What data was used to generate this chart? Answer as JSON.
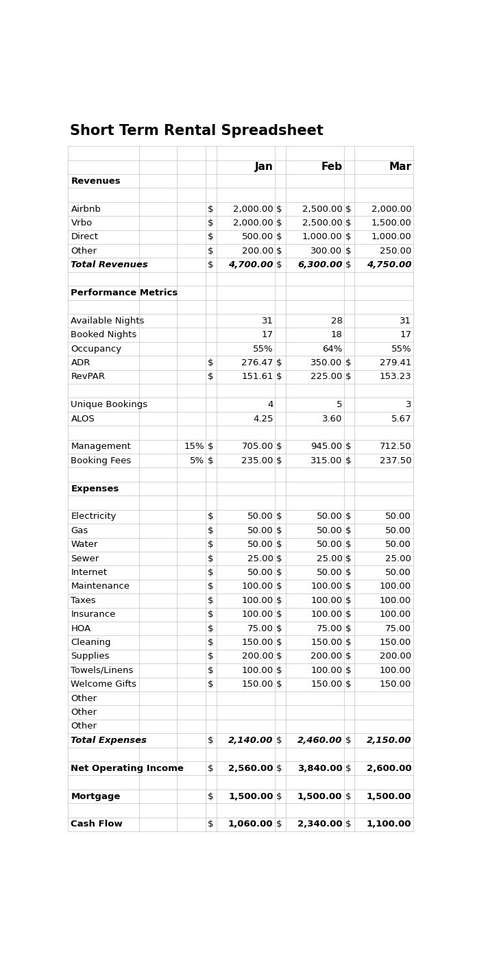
{
  "title": "Short Term Rental Spreadsheet",
  "rows": [
    {
      "label": "Revenues",
      "bold": true,
      "italic": false,
      "pct": "",
      "s0": "",
      "v0": "",
      "s1": "",
      "v1": "",
      "s2": "",
      "v2": ""
    },
    {
      "label": "",
      "bold": false,
      "italic": false,
      "pct": "",
      "s0": "",
      "v0": "",
      "s1": "",
      "v1": "",
      "s2": "",
      "v2": ""
    },
    {
      "label": "Airbnb",
      "bold": false,
      "italic": false,
      "pct": "",
      "s0": "$",
      "v0": "2,000.00",
      "s1": "$",
      "v1": "2,500.00",
      "s2": "$",
      "v2": "2,000.00"
    },
    {
      "label": "Vrbo",
      "bold": false,
      "italic": false,
      "pct": "",
      "s0": "$",
      "v0": "2,000.00",
      "s1": "$",
      "v1": "2,500.00",
      "s2": "$",
      "v2": "1,500.00"
    },
    {
      "label": "Direct",
      "bold": false,
      "italic": false,
      "pct": "",
      "s0": "$",
      "v0": "500.00",
      "s1": "$",
      "v1": "1,000.00",
      "s2": "$",
      "v2": "1,000.00"
    },
    {
      "label": "Other",
      "bold": false,
      "italic": false,
      "pct": "",
      "s0": "$",
      "v0": "200.00",
      "s1": "$",
      "v1": "300.00",
      "s2": "$",
      "v2": "250.00"
    },
    {
      "label": "Total Revenues",
      "bold": true,
      "italic": true,
      "pct": "",
      "s0": "$",
      "v0": "4,700.00",
      "s1": "$",
      "v1": "6,300.00",
      "s2": "$",
      "v2": "4,750.00"
    },
    {
      "label": "",
      "bold": false,
      "italic": false,
      "pct": "",
      "s0": "",
      "v0": "",
      "s1": "",
      "v1": "",
      "s2": "",
      "v2": ""
    },
    {
      "label": "Performance Metrics",
      "bold": true,
      "italic": false,
      "pct": "",
      "s0": "",
      "v0": "",
      "s1": "",
      "v1": "",
      "s2": "",
      "v2": ""
    },
    {
      "label": "",
      "bold": false,
      "italic": false,
      "pct": "",
      "s0": "",
      "v0": "",
      "s1": "",
      "v1": "",
      "s2": "",
      "v2": ""
    },
    {
      "label": "Available Nights",
      "bold": false,
      "italic": false,
      "pct": "",
      "s0": "",
      "v0": "31",
      "s1": "",
      "v1": "28",
      "s2": "",
      "v2": "31"
    },
    {
      "label": "Booked Nights",
      "bold": false,
      "italic": false,
      "pct": "",
      "s0": "",
      "v0": "17",
      "s1": "",
      "v1": "18",
      "s2": "",
      "v2": "17"
    },
    {
      "label": "Occupancy",
      "bold": false,
      "italic": false,
      "pct": "",
      "s0": "",
      "v0": "55%",
      "s1": "",
      "v1": "64%",
      "s2": "",
      "v2": "55%"
    },
    {
      "label": "ADR",
      "bold": false,
      "italic": false,
      "pct": "",
      "s0": "$",
      "v0": "276.47",
      "s1": "$",
      "v1": "350.00",
      "s2": "$",
      "v2": "279.41"
    },
    {
      "label": "RevPAR",
      "bold": false,
      "italic": false,
      "pct": "",
      "s0": "$",
      "v0": "151.61",
      "s1": "$",
      "v1": "225.00",
      "s2": "$",
      "v2": "153.23"
    },
    {
      "label": "",
      "bold": false,
      "italic": false,
      "pct": "",
      "s0": "",
      "v0": "",
      "s1": "",
      "v1": "",
      "s2": "",
      "v2": ""
    },
    {
      "label": "Unique Bookings",
      "bold": false,
      "italic": false,
      "pct": "",
      "s0": "",
      "v0": "4",
      "s1": "",
      "v1": "5",
      "s2": "",
      "v2": "3"
    },
    {
      "label": "ALOS",
      "bold": false,
      "italic": false,
      "pct": "",
      "s0": "",
      "v0": "4.25",
      "s1": "",
      "v1": "3.60",
      "s2": "",
      "v2": "5.67"
    },
    {
      "label": "",
      "bold": false,
      "italic": false,
      "pct": "",
      "s0": "",
      "v0": "",
      "s1": "",
      "v1": "",
      "s2": "",
      "v2": ""
    },
    {
      "label": "Management",
      "bold": false,
      "italic": false,
      "pct": "15%",
      "s0": "$",
      "v0": "705.00",
      "s1": "$",
      "v1": "945.00",
      "s2": "$",
      "v2": "712.50"
    },
    {
      "label": "Booking Fees",
      "bold": false,
      "italic": false,
      "pct": "5%",
      "s0": "$",
      "v0": "235.00",
      "s1": "$",
      "v1": "315.00",
      "s2": "$",
      "v2": "237.50"
    },
    {
      "label": "",
      "bold": false,
      "italic": false,
      "pct": "",
      "s0": "",
      "v0": "",
      "s1": "",
      "v1": "",
      "s2": "",
      "v2": ""
    },
    {
      "label": "Expenses",
      "bold": true,
      "italic": false,
      "pct": "",
      "s0": "",
      "v0": "",
      "s1": "",
      "v1": "",
      "s2": "",
      "v2": ""
    },
    {
      "label": "",
      "bold": false,
      "italic": false,
      "pct": "",
      "s0": "",
      "v0": "",
      "s1": "",
      "v1": "",
      "s2": "",
      "v2": ""
    },
    {
      "label": "Electricity",
      "bold": false,
      "italic": false,
      "pct": "",
      "s0": "$",
      "v0": "50.00",
      "s1": "$",
      "v1": "50.00",
      "s2": "$",
      "v2": "50.00"
    },
    {
      "label": "Gas",
      "bold": false,
      "italic": false,
      "pct": "",
      "s0": "$",
      "v0": "50.00",
      "s1": "$",
      "v1": "50.00",
      "s2": "$",
      "v2": "50.00"
    },
    {
      "label": "Water",
      "bold": false,
      "italic": false,
      "pct": "",
      "s0": "$",
      "v0": "50.00",
      "s1": "$",
      "v1": "50.00",
      "s2": "$",
      "v2": "50.00"
    },
    {
      "label": "Sewer",
      "bold": false,
      "italic": false,
      "pct": "",
      "s0": "$",
      "v0": "25.00",
      "s1": "$",
      "v1": "25.00",
      "s2": "$",
      "v2": "25.00"
    },
    {
      "label": "Internet",
      "bold": false,
      "italic": false,
      "pct": "",
      "s0": "$",
      "v0": "50.00",
      "s1": "$",
      "v1": "50.00",
      "s2": "$",
      "v2": "50.00"
    },
    {
      "label": "Maintenance",
      "bold": false,
      "italic": false,
      "pct": "",
      "s0": "$",
      "v0": "100.00",
      "s1": "$",
      "v1": "100.00",
      "s2": "$",
      "v2": "100.00"
    },
    {
      "label": "Taxes",
      "bold": false,
      "italic": false,
      "pct": "",
      "s0": "$",
      "v0": "100.00",
      "s1": "$",
      "v1": "100.00",
      "s2": "$",
      "v2": "100.00"
    },
    {
      "label": "Insurance",
      "bold": false,
      "italic": false,
      "pct": "",
      "s0": "$",
      "v0": "100.00",
      "s1": "$",
      "v1": "100.00",
      "s2": "$",
      "v2": "100.00"
    },
    {
      "label": "HOA",
      "bold": false,
      "italic": false,
      "pct": "",
      "s0": "$",
      "v0": "75.00",
      "s1": "$",
      "v1": "75.00",
      "s2": "$",
      "v2": "75.00"
    },
    {
      "label": "Cleaning",
      "bold": false,
      "italic": false,
      "pct": "",
      "s0": "$",
      "v0": "150.00",
      "s1": "$",
      "v1": "150.00",
      "s2": "$",
      "v2": "150.00"
    },
    {
      "label": "Supplies",
      "bold": false,
      "italic": false,
      "pct": "",
      "s0": "$",
      "v0": "200.00",
      "s1": "$",
      "v1": "200.00",
      "s2": "$",
      "v2": "200.00"
    },
    {
      "label": "Towels/Linens",
      "bold": false,
      "italic": false,
      "pct": "",
      "s0": "$",
      "v0": "100.00",
      "s1": "$",
      "v1": "100.00",
      "s2": "$",
      "v2": "100.00"
    },
    {
      "label": "Welcome Gifts",
      "bold": false,
      "italic": false,
      "pct": "",
      "s0": "$",
      "v0": "150.00",
      "s1": "$",
      "v1": "150.00",
      "s2": "$",
      "v2": "150.00"
    },
    {
      "label": "Other",
      "bold": false,
      "italic": false,
      "pct": "",
      "s0": "",
      "v0": "",
      "s1": "",
      "v1": "",
      "s2": "",
      "v2": ""
    },
    {
      "label": "Other",
      "bold": false,
      "italic": false,
      "pct": "",
      "s0": "",
      "v0": "",
      "s1": "",
      "v1": "",
      "s2": "",
      "v2": ""
    },
    {
      "label": "Other",
      "bold": false,
      "italic": false,
      "pct": "",
      "s0": "",
      "v0": "",
      "s1": "",
      "v1": "",
      "s2": "",
      "v2": ""
    },
    {
      "label": "Total Expenses",
      "bold": true,
      "italic": true,
      "pct": "",
      "s0": "$",
      "v0": "2,140.00",
      "s1": "$",
      "v1": "2,460.00",
      "s2": "$",
      "v2": "2,150.00"
    },
    {
      "label": "",
      "bold": false,
      "italic": false,
      "pct": "",
      "s0": "",
      "v0": "",
      "s1": "",
      "v1": "",
      "s2": "",
      "v2": ""
    },
    {
      "label": "Net Operating Income",
      "bold": true,
      "italic": false,
      "pct": "",
      "s0": "$",
      "v0": "2,560.00",
      "s1": "$",
      "v1": "3,840.00",
      "s2": "$",
      "v2": "2,600.00"
    },
    {
      "label": "",
      "bold": false,
      "italic": false,
      "pct": "",
      "s0": "",
      "v0": "",
      "s1": "",
      "v1": "",
      "s2": "",
      "v2": ""
    },
    {
      "label": "Mortgage",
      "bold": true,
      "italic": false,
      "pct": "",
      "s0": "$",
      "v0": "1,500.00",
      "s1": "$",
      "v1": "1,500.00",
      "s2": "$",
      "v2": "1,500.00"
    },
    {
      "label": "",
      "bold": false,
      "italic": false,
      "pct": "",
      "s0": "",
      "v0": "",
      "s1": "",
      "v1": "",
      "s2": "",
      "v2": ""
    },
    {
      "label": "Cash Flow",
      "bold": true,
      "italic": false,
      "pct": "",
      "s0": "$",
      "v0": "1,060.00",
      "s1": "$",
      "v1": "2,340.00",
      "s2": "$",
      "v2": "1,100.00"
    }
  ],
  "grid_color": "#C0C0C0",
  "font_size_title": 15,
  "font_size_header": 11,
  "font_size_body": 9.5
}
